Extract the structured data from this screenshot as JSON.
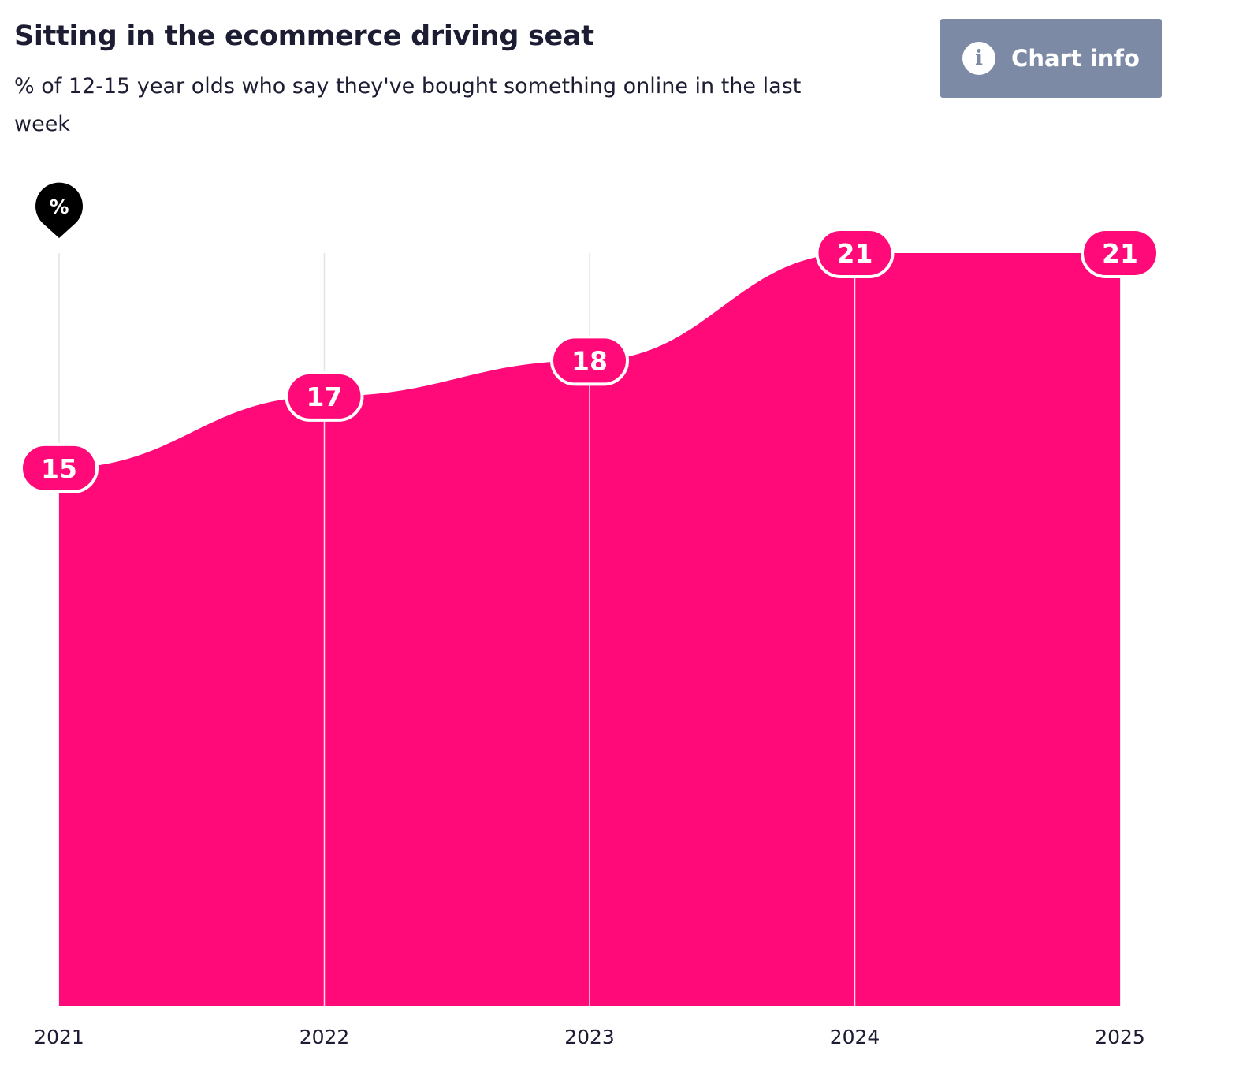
{
  "header": {
    "title": "Sitting in the ecommerce driving seat",
    "subtitle": "% of 12-15 year olds who say they've bought something online in the last week",
    "chart_info_label": "Chart info",
    "info_icon": "info-icon"
  },
  "chart_data": {
    "type": "area",
    "title": "Sitting in the ecommerce driving seat",
    "subtitle": "% of 12-15 year olds who say they've bought something online in the last week",
    "categories": [
      "2021",
      "2022",
      "2023",
      "2024",
      "2025"
    ],
    "values": [
      15,
      17,
      18,
      21,
      21
    ],
    "unit_marker": "%",
    "ylim": [
      0,
      21
    ],
    "grid": "vertical",
    "colors": {
      "area": "#ff0a78",
      "label_bg": "#ff0a78",
      "label_border": "#ffffff",
      "grid": "#dfe3ea",
      "unit_marker_bg": "#000000"
    }
  }
}
